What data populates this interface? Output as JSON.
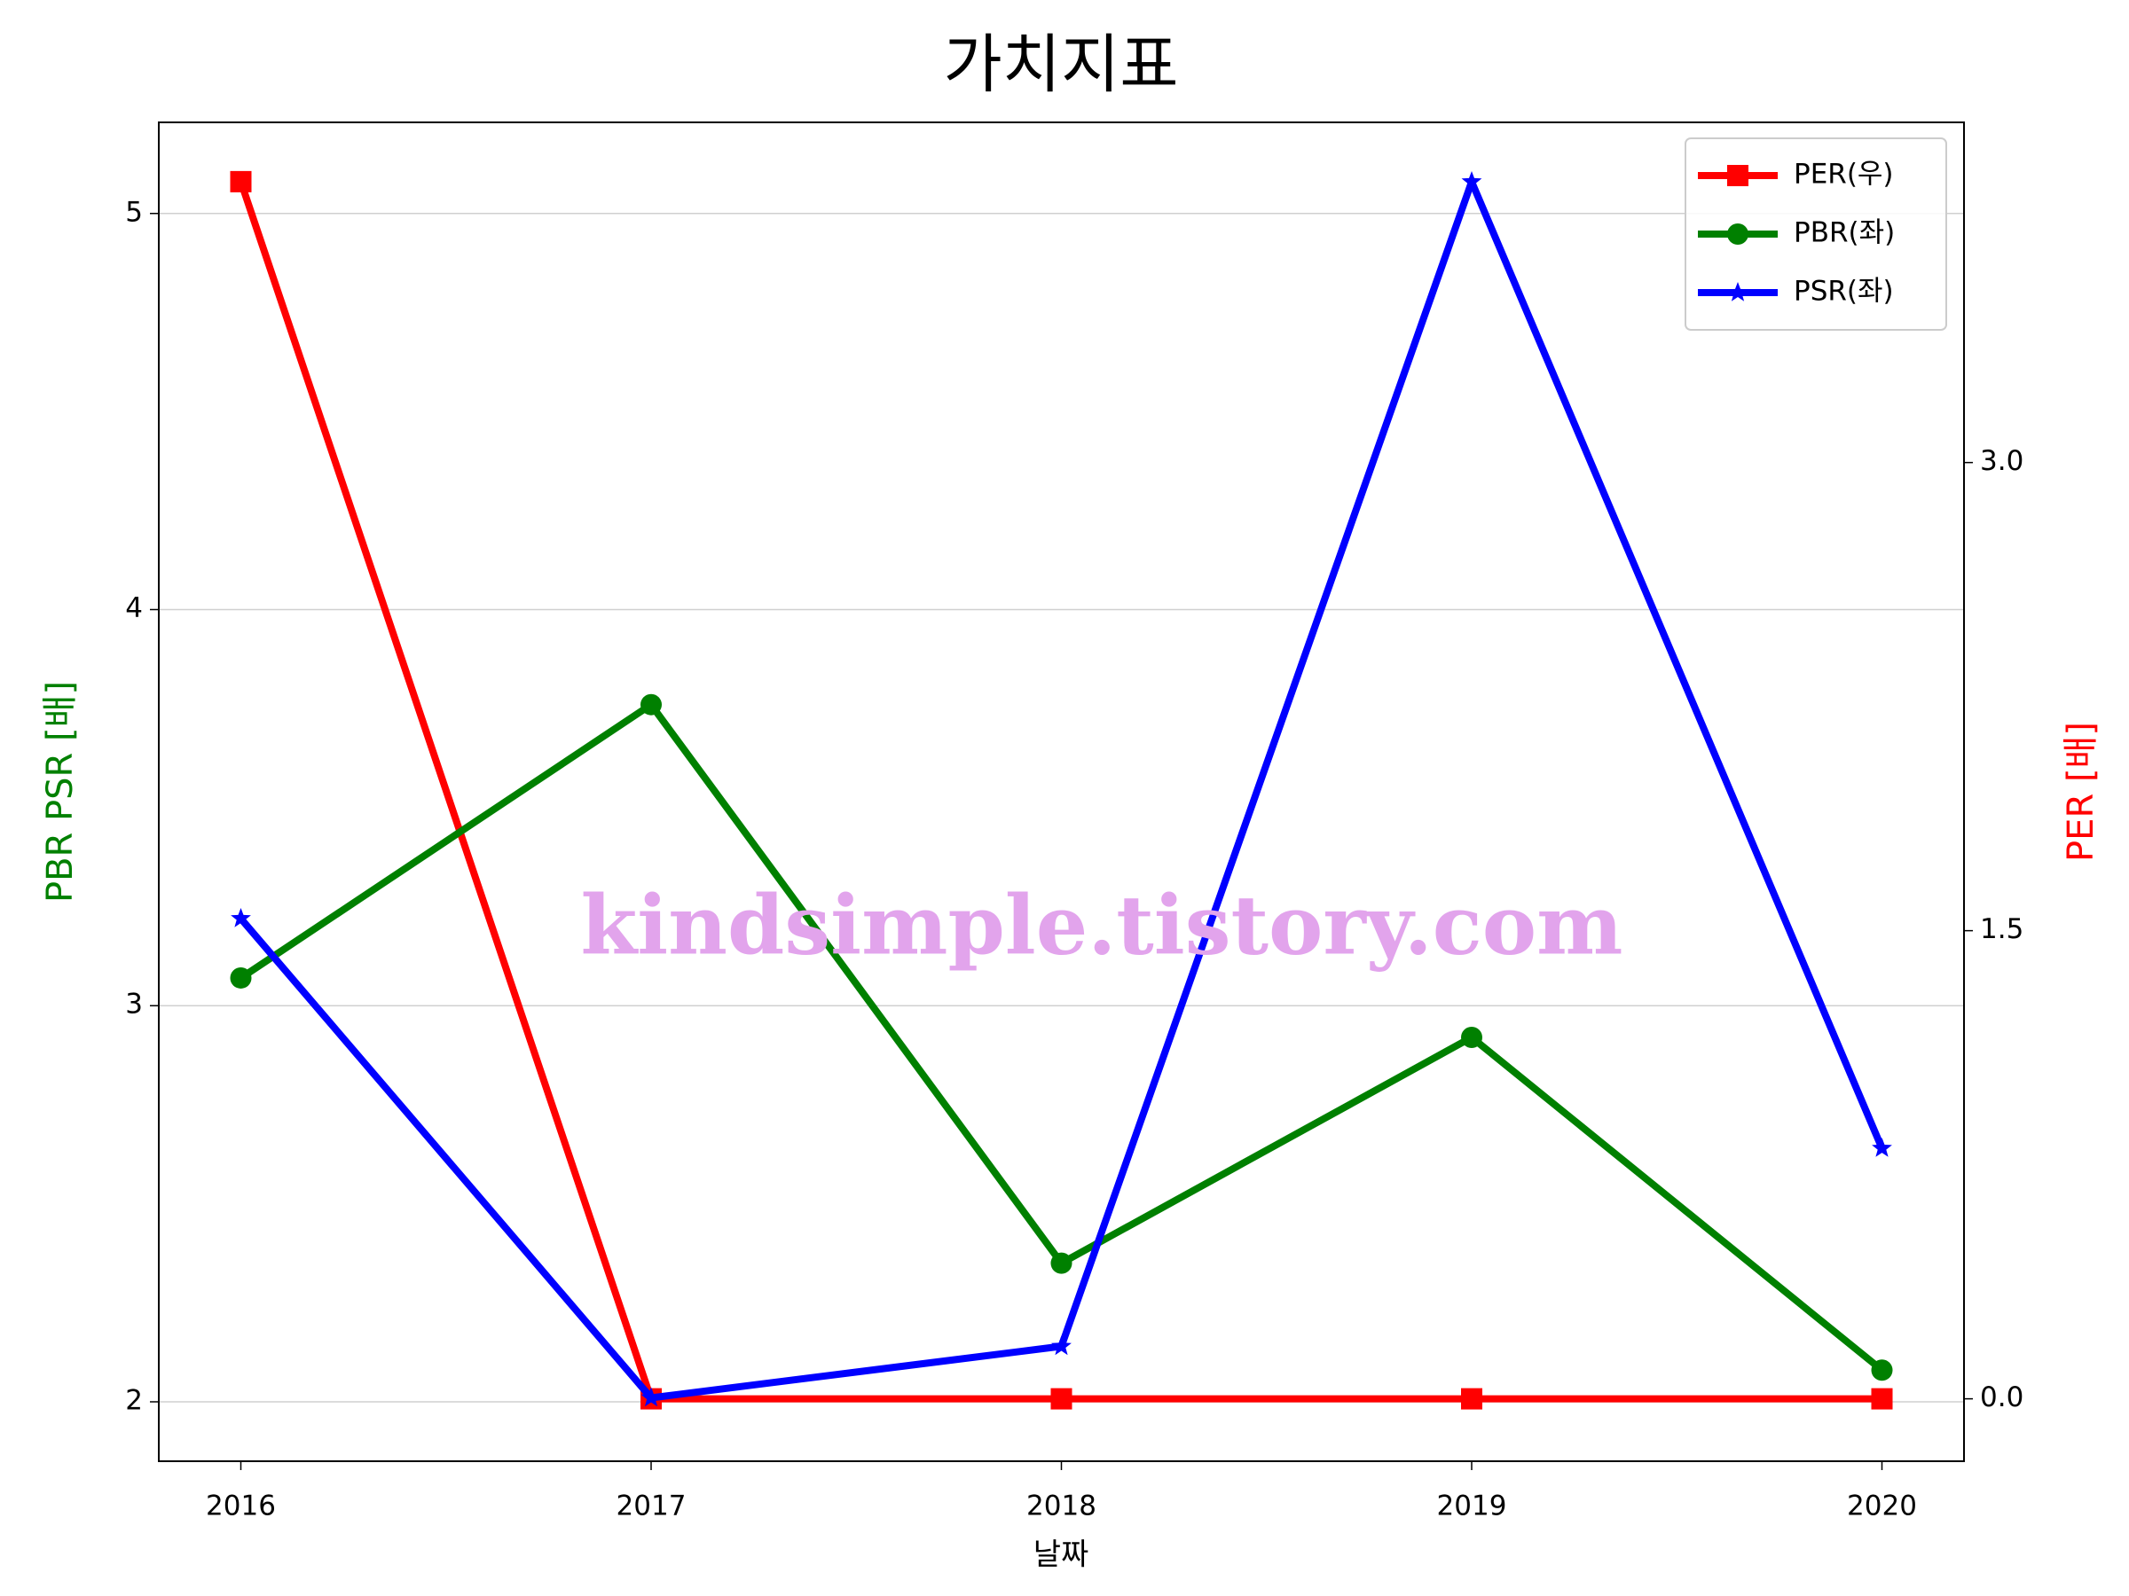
{
  "chart_data": {
    "type": "line",
    "title": "가치지표",
    "x_label": "날짜",
    "y_label": "PBR PSR [배]",
    "y2_label": "PER [배]",
    "watermark": "kindsimple.tistory.com",
    "x": [
      2016,
      2017,
      2018,
      2019,
      2020
    ],
    "xlim": [
      2015.8,
      2020.2
    ],
    "xticks": [
      2016,
      2017,
      2018,
      2019,
      2020
    ],
    "ylim": [
      1.85,
      5.23
    ],
    "yticks": [
      2,
      3,
      4,
      5
    ],
    "y2lim": [
      -0.2,
      4.09
    ],
    "y2ticks": [
      {
        "value": 0,
        "label": "0.0"
      },
      {
        "value": 1.5,
        "label": "1.5"
      },
      {
        "value": 3,
        "label": "3.0"
      }
    ],
    "grid": true,
    "legend": "upper right",
    "series": [
      {
        "name": "PER(우)",
        "color": "#ff0000",
        "marker": "square",
        "axis": "y2",
        "values": [
          3.9,
          0,
          0,
          0,
          0
        ]
      },
      {
        "name": "PBR(좌)",
        "color": "#008000",
        "marker": "circle",
        "values": [
          3.07,
          3.76,
          2.35,
          2.92,
          2.08
        ]
      },
      {
        "name": "PSR(좌)",
        "color": "#0000ff",
        "marker": "star",
        "values": [
          3.22,
          2.01,
          2.14,
          5.08,
          2.64
        ]
      }
    ]
  }
}
